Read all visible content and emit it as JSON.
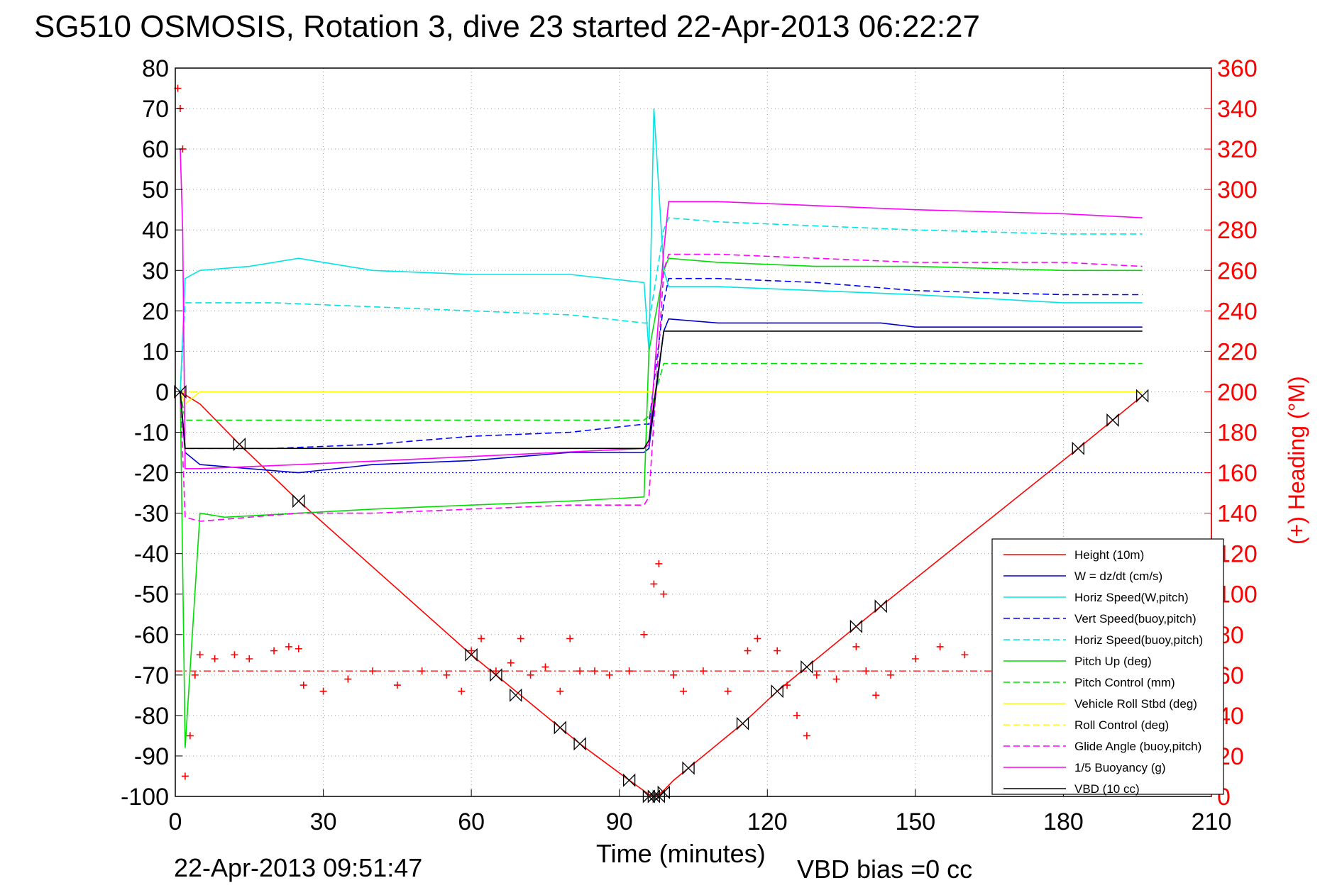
{
  "chart_data": {
    "type": "line",
    "title": "SG510 OSMOSIS, Rotation 3, dive 23 started 22-Apr-2013 06:22:27",
    "xlabel": "Time (minutes)",
    "ylabel": "",
    "y2label": "(+) Heading (°M)",
    "xlim": [
      0,
      210
    ],
    "ylim": [
      -100,
      80
    ],
    "y2lim": [
      0,
      360
    ],
    "xticks": [
      "0",
      "30",
      "60",
      "90",
      "120",
      "150",
      "180",
      "210"
    ],
    "yticks": [
      "80",
      "70",
      "60",
      "50",
      "40",
      "30",
      "20",
      "10",
      "0",
      "-10",
      "-20",
      "-30",
      "-40",
      "-50",
      "-60",
      "-70",
      "-80",
      "-90",
      "-100"
    ],
    "y2ticks": [
      "360",
      "340",
      "320",
      "300",
      "280",
      "260",
      "240",
      "220",
      "200",
      "180",
      "160",
      "140",
      "120",
      "100",
      "80",
      "60",
      "40",
      "20",
      "0"
    ],
    "grid": true,
    "legend_position": "bottom-right",
    "footer_timestamp": "22-Apr-2013 09:51:47",
    "footer_note": "VBD bias =0 cc",
    "series": [
      {
        "name": "Height (10m)",
        "color": "#ff0000",
        "style": "solid",
        "x": [
          1,
          5,
          13,
          25,
          60,
          65,
          70,
          78,
          82,
          92,
          96,
          97,
          98,
          99,
          101,
          104,
          115,
          122,
          128,
          138,
          143,
          183,
          190,
          195,
          196
        ],
        "y": [
          0,
          -3,
          -13,
          -27,
          -65,
          -70,
          -75,
          -83,
          -87,
          -96,
          -99.5,
          -100,
          -99.5,
          -98.5,
          -96,
          -93,
          -82,
          -74,
          -68,
          -58,
          -53,
          -14,
          -7,
          -2,
          -1
        ]
      },
      {
        "name": "W = dz/dt (cm/s)",
        "color": "#0000cc",
        "style": "solid",
        "x": [
          1,
          2,
          5,
          15,
          25,
          40,
          60,
          80,
          95,
          96,
          99,
          100,
          110,
          130,
          143,
          150,
          180,
          196
        ],
        "y": [
          0,
          -15,
          -18,
          -19,
          -20,
          -18,
          -17,
          -15,
          -15,
          -14,
          15,
          18,
          17,
          17,
          17,
          16,
          16,
          16
        ]
      },
      {
        "name": "Horiz Speed(W,pitch)",
        "color": "#00e5e5",
        "style": "solid",
        "x": [
          1,
          2,
          5,
          15,
          25,
          40,
          60,
          80,
          95,
          96,
          97,
          99,
          100,
          110,
          130,
          150,
          180,
          196
        ],
        "y": [
          0,
          28,
          30,
          31,
          33,
          30,
          29,
          29,
          27,
          10,
          70,
          30,
          26,
          26,
          25,
          24,
          22,
          22
        ]
      },
      {
        "name": "Vert Speed(buoy,pitch)",
        "color": "#0000ff",
        "style": "dashed",
        "x": [
          1,
          2,
          5,
          20,
          40,
          60,
          80,
          95,
          96,
          99,
          100,
          110,
          130,
          150,
          180,
          196
        ],
        "y": [
          0,
          -14,
          -14,
          -14,
          -13,
          -11,
          -10,
          -8,
          -8,
          22,
          28,
          28,
          27,
          25,
          24,
          24
        ]
      },
      {
        "name": "Horiz Speed(buoy,pitch)",
        "color": "#00e5e5",
        "style": "dashed",
        "x": [
          1,
          2,
          5,
          20,
          40,
          60,
          80,
          95,
          96,
          99,
          100,
          110,
          130,
          150,
          180,
          196
        ],
        "y": [
          0,
          22,
          22,
          22,
          21,
          20,
          19,
          17,
          17,
          40,
          43,
          42,
          41,
          40,
          39,
          39
        ]
      },
      {
        "name": "Pitch Up (deg)",
        "color": "#00dd00",
        "style": "solid",
        "x": [
          1,
          2,
          5,
          10,
          25,
          40,
          60,
          80,
          95,
          96,
          99,
          100,
          110,
          130,
          150,
          180,
          196
        ],
        "y": [
          0,
          -88,
          -30,
          -31,
          -30,
          -29,
          -28,
          -27,
          -26,
          10,
          30,
          33,
          32,
          31,
          31,
          30,
          30
        ]
      },
      {
        "name": "Pitch Control (mm)",
        "color": "#00dd00",
        "style": "dashed",
        "x": [
          1,
          2,
          5,
          25,
          60,
          95,
          96,
          99,
          100,
          130,
          196
        ],
        "y": [
          0,
          -7,
          -7,
          -7,
          -7,
          -7,
          -6,
          7,
          7,
          7,
          7
        ]
      },
      {
        "name": "Vehicle Roll Stbd (deg)",
        "color": "#ffff00",
        "style": "solid",
        "x": [
          1,
          2,
          5,
          20,
          60,
          80,
          95,
          100,
          130,
          160,
          190,
          196
        ],
        "y": [
          0,
          -3,
          0,
          0,
          0,
          0,
          0,
          0,
          0,
          0,
          0,
          0
        ]
      },
      {
        "name": "Roll Control (deg)",
        "color": "#ffff00",
        "style": "dashed",
        "x": [
          1,
          2,
          196
        ],
        "y": [
          0,
          0,
          0
        ]
      },
      {
        "name": "Glide Angle (buoy,pitch)",
        "color": "#ff00ff",
        "style": "dashed",
        "x": [
          1,
          2,
          5,
          25,
          40,
          60,
          80,
          95,
          96,
          99,
          100,
          110,
          130,
          150,
          180,
          196
        ],
        "y": [
          0,
          -31,
          -32,
          -30,
          -30,
          -29,
          -28,
          -28,
          -26,
          30,
          34,
          34,
          33,
          32,
          32,
          31
        ]
      },
      {
        "name": "1/5 Buoyancy (g)",
        "color": "#ff00ff",
        "style": "solid",
        "x": [
          1,
          1.5,
          2,
          5,
          25,
          60,
          95,
          96,
          99,
          100,
          110,
          150,
          180,
          196
        ],
        "y": [
          60,
          40,
          -19,
          -19,
          -18,
          -16,
          -14,
          -13,
          35,
          47,
          47,
          45,
          44,
          43
        ]
      },
      {
        "name": "VBD (10 cc)",
        "color": "#000000",
        "style": "solid",
        "x": [
          1,
          2,
          5,
          25,
          60,
          95,
          96,
          99,
          100,
          196
        ],
        "y": [
          0,
          -14,
          -14,
          -14,
          -14,
          -14,
          -12,
          15,
          15,
          15
        ]
      }
    ],
    "heading_series": {
      "name": "(+) Heading (°M)",
      "color": "#ff0000",
      "marker": "+",
      "axis": "right",
      "x": [
        0.5,
        1,
        1.5,
        2,
        3,
        4,
        5,
        8,
        12,
        15,
        20,
        23,
        25,
        26,
        30,
        35,
        40,
        45,
        50,
        55,
        58,
        60,
        62,
        65,
        68,
        70,
        72,
        75,
        78,
        80,
        82,
        85,
        88,
        92,
        95,
        97,
        98,
        99,
        101,
        103,
        107,
        112,
        116,
        118,
        122,
        124,
        126,
        128,
        130,
        134,
        138,
        140,
        142,
        145,
        150,
        155,
        160
      ],
      "y": [
        350,
        340,
        320,
        10,
        30,
        60,
        70,
        68,
        70,
        68,
        72,
        74,
        73,
        55,
        52,
        58,
        62,
        55,
        62,
        60,
        52,
        72,
        78,
        62,
        66,
        78,
        60,
        64,
        52,
        78,
        62,
        62,
        60,
        62,
        80,
        105,
        115,
        100,
        60,
        52,
        62,
        52,
        72,
        78,
        72,
        55,
        40,
        30,
        60,
        58,
        74,
        62,
        50,
        60,
        68,
        74,
        70
      ]
    },
    "height_markers": {
      "marker": "hourglass",
      "color": "#000000",
      "x": [
        1,
        13,
        25,
        60,
        65,
        69,
        78,
        82,
        92,
        96,
        97,
        98,
        99,
        104,
        115,
        122,
        128,
        138,
        143,
        183,
        190,
        196
      ],
      "y": [
        0,
        -13,
        -27,
        -65,
        -70,
        -75,
        -83,
        -87,
        -96,
        -100,
        -100,
        -100,
        -99,
        -93,
        -82,
        -74,
        -68,
        -58,
        -53,
        -14,
        -7,
        -1
      ]
    },
    "reference_lines": [
      {
        "axis": "left",
        "y": -20,
        "color": "#0000ff",
        "style": "dotted"
      },
      {
        "axis": "right",
        "y": 62,
        "color": "#ff0000",
        "style": "dash-dot"
      }
    ]
  }
}
